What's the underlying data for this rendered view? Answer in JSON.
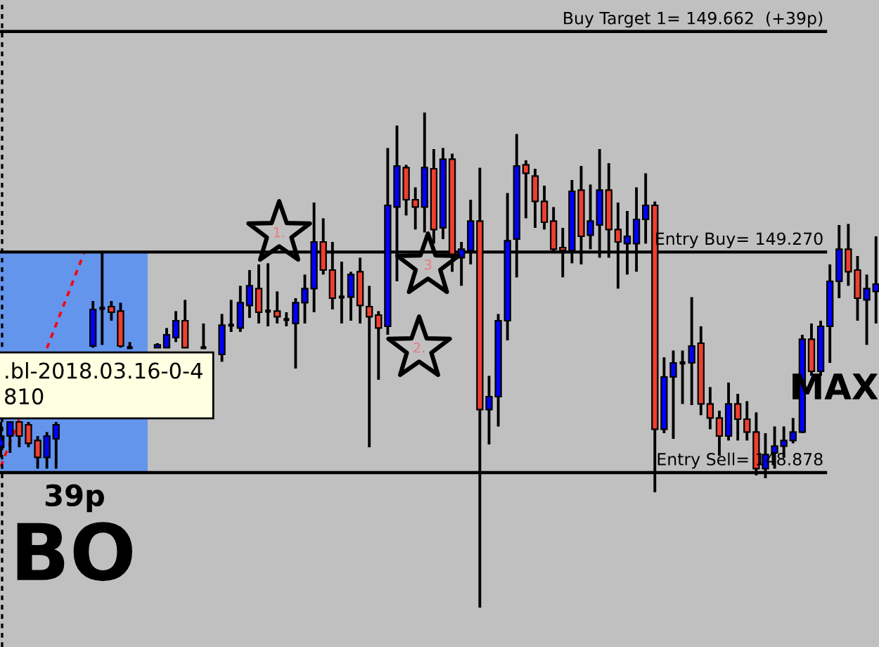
{
  "chart_data": {
    "type": "candlestick",
    "categories": [
      null,
      null,
      null,
      null,
      null,
      null,
      null,
      null,
      null,
      null,
      null,
      null,
      null,
      null,
      null,
      null,
      null,
      null,
      null,
      null,
      null,
      null,
      null,
      null,
      null,
      null,
      null,
      null,
      null,
      null,
      null,
      null,
      null,
      null,
      null,
      null,
      null,
      null,
      null,
      null,
      null,
      null,
      null,
      null,
      null,
      null,
      null,
      null,
      null,
      null,
      null,
      null,
      null,
      null,
      null,
      null,
      null,
      null,
      null,
      null,
      null,
      null,
      null,
      null,
      null,
      null,
      null,
      null,
      null,
      null,
      null,
      null,
      null,
      null,
      null,
      null,
      null,
      null,
      null,
      null,
      null,
      null,
      null,
      null,
      null,
      null,
      null,
      null,
      null,
      null,
      null,
      null,
      null,
      null,
      null,
      null
    ],
    "ohlc": [
      [
        148.923,
        148.968,
        148.905,
        148.943
      ],
      [
        148.943,
        148.968,
        148.913,
        148.968
      ],
      [
        148.968,
        148.968,
        148.923,
        148.943
      ],
      [
        148.963,
        148.968,
        148.923,
        148.93
      ],
      [
        148.935,
        148.943,
        148.885,
        148.905
      ],
      [
        148.905,
        148.95,
        148.885,
        148.943
      ],
      [
        148.938,
        148.968,
        148.885,
        148.963
      ],
      null,
      null,
      null,
      [
        149.103,
        149.183,
        149.1,
        149.168
      ],
      [
        149.17,
        149.268,
        149.105,
        149.17
      ],
      [
        149.173,
        149.183,
        149.148,
        149.163
      ],
      [
        149.165,
        149.18,
        149.1,
        149.103
      ],
      [
        149.1,
        149.11,
        149.1,
        149.1
      ],
      null,
      null,
      [
        149.1,
        149.108,
        149.1,
        149.105
      ],
      [
        149.1,
        149.135,
        149.1,
        149.123
      ],
      [
        149.118,
        149.165,
        149.11,
        149.148
      ],
      [
        149.148,
        149.185,
        149.1,
        149.1
      ],
      null,
      [
        149.1,
        149.143,
        149.1,
        149.1
      ],
      null,
      [
        149.088,
        149.16,
        149.075,
        149.14
      ],
      [
        149.14,
        149.185,
        149.128,
        149.14
      ],
      [
        149.135,
        149.21,
        149.128,
        149.18
      ],
      [
        149.175,
        149.238,
        149.153,
        149.21
      ],
      [
        149.205,
        149.248,
        149.143,
        149.163
      ],
      [
        149.165,
        149.25,
        149.138,
        149.165
      ],
      [
        149.165,
        149.2,
        149.143,
        149.155
      ],
      [
        149.15,
        149.163,
        149.138,
        149.15
      ],
      [
        149.143,
        149.188,
        149.063,
        149.18
      ],
      [
        149.18,
        149.23,
        149.143,
        149.205
      ],
      [
        149.205,
        149.358,
        149.163,
        149.288
      ],
      [
        149.288,
        149.33,
        149.23,
        149.238
      ],
      [
        149.238,
        149.288,
        149.168,
        149.188
      ],
      [
        149.19,
        149.253,
        149.143,
        149.19
      ],
      [
        149.19,
        149.235,
        149.148,
        149.23
      ],
      [
        149.235,
        149.26,
        149.143,
        149.175
      ],
      [
        149.173,
        149.21,
        148.923,
        149.155
      ],
      [
        149.158,
        149.165,
        149.043,
        149.135
      ],
      [
        149.138,
        149.455,
        149.123,
        149.353
      ],
      [
        149.35,
        149.495,
        149.218,
        149.423
      ],
      [
        149.42,
        149.425,
        149.335,
        149.363
      ],
      [
        149.363,
        149.385,
        149.31,
        149.35
      ],
      [
        149.35,
        149.518,
        149.305,
        149.42
      ],
      [
        149.418,
        149.453,
        149.285,
        149.31
      ],
      [
        149.313,
        149.455,
        149.293,
        149.435
      ],
      [
        149.435,
        149.445,
        149.235,
        149.263
      ],
      [
        149.26,
        149.288,
        149.21,
        149.275
      ],
      [
        149.273,
        149.363,
        149.248,
        149.325
      ],
      [
        149.325,
        149.42,
        148.638,
        148.99
      ],
      [
        148.99,
        149.05,
        148.928,
        149.013
      ],
      [
        149.013,
        149.16,
        148.96,
        149.148
      ],
      [
        149.148,
        149.375,
        149.113,
        149.29
      ],
      [
        149.293,
        149.48,
        149.225,
        149.423
      ],
      [
        149.425,
        149.433,
        149.33,
        149.41
      ],
      [
        149.405,
        149.418,
        149.313,
        149.36
      ],
      [
        149.36,
        149.388,
        149.31,
        149.323
      ],
      [
        149.325,
        149.35,
        149.268,
        149.275
      ],
      [
        149.278,
        149.313,
        149.225,
        149.273
      ],
      [
        149.273,
        149.398,
        149.25,
        149.378
      ],
      [
        149.38,
        149.423,
        149.248,
        149.298
      ],
      [
        149.3,
        149.39,
        149.275,
        149.325
      ],
      [
        149.318,
        149.453,
        149.26,
        149.38
      ],
      [
        149.38,
        149.428,
        149.26,
        149.31
      ],
      [
        149.31,
        149.358,
        149.205,
        149.288
      ],
      [
        149.285,
        149.343,
        149.23,
        149.298
      ],
      [
        149.285,
        149.385,
        149.235,
        149.328
      ],
      [
        149.328,
        149.41,
        149.285,
        149.353
      ],
      [
        149.353,
        149.36,
        148.843,
        148.955
      ],
      [
        148.955,
        149.083,
        148.948,
        149.048
      ],
      [
        149.048,
        149.095,
        148.938,
        149.073
      ],
      [
        149.073,
        149.095,
        149.0,
        149.073
      ],
      [
        149.073,
        149.19,
        148.998,
        149.103
      ],
      [
        149.108,
        149.138,
        148.98,
        149.0
      ],
      [
        149.0,
        149.03,
        148.955,
        148.975
      ],
      [
        148.975,
        148.988,
        148.908,
        148.943
      ],
      [
        148.943,
        149.038,
        148.935,
        149.0
      ],
      [
        149.0,
        149.018,
        148.935,
        148.973
      ],
      [
        148.973,
        149.005,
        148.935,
        148.95
      ],
      [
        148.95,
        148.985,
        148.873,
        148.885
      ],
      [
        148.885,
        148.948,
        148.868,
        148.91
      ],
      [
        148.913,
        148.96,
        148.885,
        148.925
      ],
      [
        148.925,
        148.96,
        148.905,
        148.935
      ],
      [
        148.935,
        148.975,
        148.93,
        148.95
      ],
      [
        148.95,
        149.123,
        148.948,
        149.115
      ],
      [
        149.115,
        149.143,
        149.05,
        149.058
      ],
      [
        149.058,
        149.148,
        149.05,
        149.138
      ],
      [
        149.138,
        149.248,
        149.073,
        149.218
      ],
      [
        149.218,
        149.318,
        149.188,
        149.275
      ],
      [
        149.275,
        149.32,
        149.21,
        149.235
      ],
      [
        149.238,
        149.263,
        149.148,
        149.188
      ],
      [
        149.185,
        149.23,
        149.105,
        149.205
      ],
      [
        149.2,
        149.298,
        149.143,
        149.213
      ]
    ],
    "colors": [
      "#0000ff",
      "#0000ff",
      "#ef3f2f",
      "#ef3f2f",
      "#ef3f2f",
      "#0000ff",
      "#0000ff",
      null,
      null,
      null,
      "#0000ff",
      "#000000",
      "#ef3f2f",
      "#ef3f2f",
      "#000000",
      null,
      null,
      "#0000ff",
      "#0000ff",
      "#0000ff",
      "#ef3f2f",
      null,
      "#000000",
      null,
      "#0000ff",
      "#000000",
      "#0000ff",
      "#0000ff",
      "#ef3f2f",
      "#000000",
      "#ef3f2f",
      "#000000",
      "#0000ff",
      "#0000ff",
      "#0000ff",
      "#ef3f2f",
      "#ef3f2f",
      "#000000",
      "#0000ff",
      "#ef3f2f",
      "#ef3f2f",
      "#ef3f2f",
      "#0000ff",
      "#0000ff",
      "#ef3f2f",
      "#ef3f2f",
      "#0000ff",
      "#ef3f2f",
      "#0000ff",
      "#ef3f2f",
      "#0000ff",
      "#0000ff",
      "#ef3f2f",
      "#0000ff",
      "#0000ff",
      "#0000ff",
      "#0000ff",
      "#ef3f2f",
      "#ef3f2f",
      "#ef3f2f",
      "#ef3f2f",
      "#ef3f2f",
      "#0000ff",
      "#ef3f2f",
      "#0000ff",
      "#0000ff",
      "#ef3f2f",
      "#ef3f2f",
      "#0000ff",
      "#0000ff",
      "#0000ff",
      "#ef3f2f",
      "#0000ff",
      "#0000ff",
      "#000000",
      "#0000ff",
      "#ef3f2f",
      "#ef3f2f",
      "#ef3f2f",
      "#0000ff",
      "#ef3f2f",
      "#ef3f2f",
      "#ef3f2f",
      "#0000ff",
      "#0000ff",
      "#0000ff",
      "#0000ff",
      "#0000ff",
      "#ef3f2f",
      "#0000ff",
      "#0000ff",
      "#0000ff",
      "#ef3f2f",
      "#ef3f2f",
      "#0000ff",
      "#0000ff"
    ],
    "series": [
      {
        "type": "line",
        "color": "#ff0000",
        "line_style": "dashed",
        "values": [
          148.889,
          148.931,
          148.973,
          null,
          null,
          149.099,
          149.141,
          149.183,
          149.225,
          149.267,
          null,
          null,
          null,
          null,
          null,
          null,
          null,
          null,
          null,
          null,
          null,
          null,
          null,
          null,
          null,
          null,
          null,
          null,
          null,
          null,
          null,
          null,
          null,
          null,
          null,
          null,
          null,
          null,
          null,
          null,
          null,
          null,
          null,
          null,
          null,
          null,
          null,
          null,
          null,
          null,
          null,
          null,
          null,
          null,
          null,
          null,
          null,
          null,
          null,
          null,
          null,
          null,
          null,
          null,
          null,
          null,
          null,
          null,
          null,
          null,
          null,
          null,
          null,
          null,
          null,
          null,
          null,
          null,
          null,
          null,
          null,
          null,
          null,
          null,
          null,
          null,
          null,
          null,
          null,
          null,
          null,
          null,
          null,
          null,
          null,
          null
        ]
      }
    ],
    "ylim": [
      148.568,
      149.718
    ],
    "tick_labels": false,
    "ref_lines": [
      {
        "axis": "y",
        "value": 149.662,
        "label": "Buy Target 1= 149.662  (+39p)",
        "color": "#000000"
      },
      {
        "axis": "y",
        "value": 149.27,
        "label": "Entry Buy= 149.270",
        "color": "#000000"
      },
      {
        "axis": "y",
        "value": 148.878,
        "label": "Entry Sell= 148.878",
        "color": "#000000"
      }
    ],
    "annotations": [
      "1.",
      "2.",
      "3",
      ".bl-2018.03.16-0-4\n810",
      "39p",
      "BO",
      "MAX"
    ]
  }
}
